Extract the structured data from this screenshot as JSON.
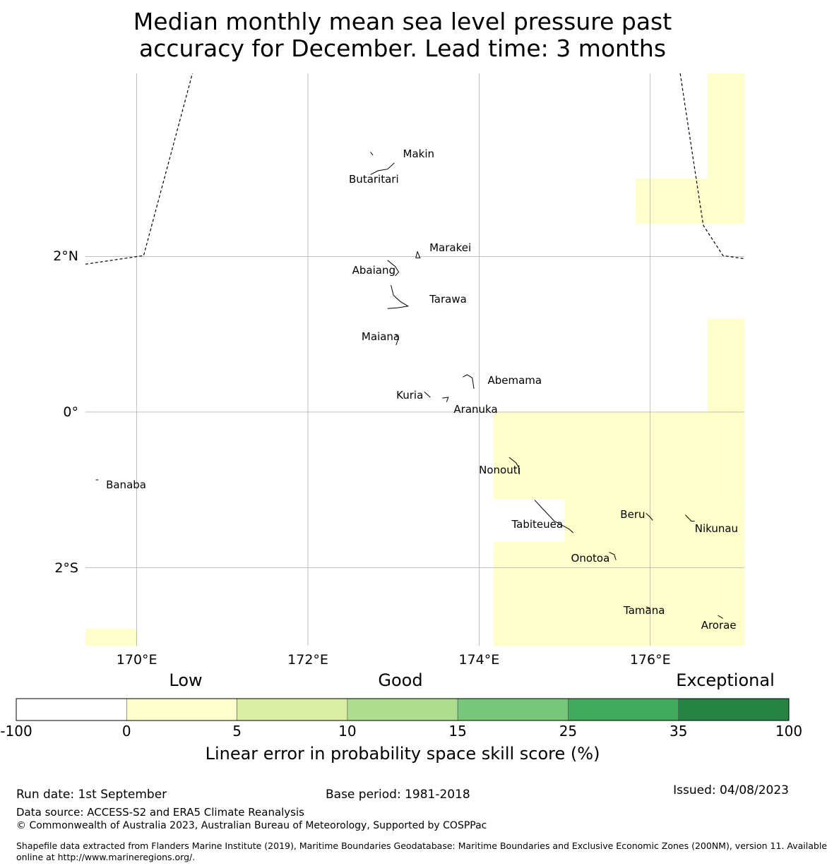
{
  "title_lines": [
    "Median monthly mean sea level pressure past",
    "accuracy for December. Lead time: 3 months"
  ],
  "map": {
    "lon_range": [
      169.4,
      177.1
    ],
    "lat_range": [
      -3.0,
      4.35
    ],
    "lon_ticks": [
      {
        "lon": 170,
        "label": "170°E"
      },
      {
        "lon": 172,
        "label": "172°E"
      },
      {
        "lon": 174,
        "label": "174°E"
      },
      {
        "lon": 176,
        "label": "176°E"
      }
    ],
    "lat_ticks": [
      {
        "lat": 2,
        "label": "2°N"
      },
      {
        "lat": 0,
        "label": "0°"
      },
      {
        "lat": -2,
        "label": "2°S"
      }
    ],
    "skill_cells": [
      {
        "lon": [
          176.67,
          177.1
        ],
        "lat": [
          2.42,
          4.35
        ],
        "category": "0-5"
      },
      {
        "lon": [
          175.83,
          176.67
        ],
        "lat": [
          2.42,
          3.0
        ],
        "category": "0-5"
      },
      {
        "lon": [
          176.67,
          177.1
        ],
        "lat": [
          0.0,
          1.2
        ],
        "category": "0-5"
      },
      {
        "lon": [
          174.17,
          177.1
        ],
        "lat": [
          -1.12,
          0.0
        ],
        "category": "0-5"
      },
      {
        "lon": [
          175.0,
          177.1
        ],
        "lat": [
          -1.67,
          -1.12
        ],
        "category": "0-5"
      },
      {
        "lon": [
          174.17,
          177.1
        ],
        "lat": [
          -3.0,
          -1.67
        ],
        "category": "0-5"
      },
      {
        "lon": [
          169.4,
          170.0
        ],
        "lat": [
          -3.0,
          -2.78
        ],
        "category": "0-5"
      }
    ],
    "boundary_lines": [
      [
        [
          169.4,
          1.9
        ],
        [
          170.08,
          2.01
        ],
        [
          170.65,
          4.35
        ]
      ],
      [
        [
          176.35,
          4.35
        ],
        [
          176.62,
          2.4
        ],
        [
          176.85,
          2.01
        ],
        [
          177.1,
          1.97
        ]
      ]
    ],
    "islands": [
      {
        "name": "Makin",
        "label": "Makin",
        "lon": 172.99,
        "lat": 3.37,
        "label_lon": 173.11,
        "label_lat": 3.32,
        "anchor": "left",
        "shape": [
          [
            172.73,
            3.34
          ],
          [
            172.76,
            3.3
          ]
        ]
      },
      {
        "name": "Butaritari",
        "label": "Butaritari",
        "lon": 172.85,
        "lat": 3.1,
        "label_lon": 172.77,
        "label_lat": 2.99,
        "anchor": "center",
        "shape": [
          [
            173.01,
            3.2
          ],
          [
            172.93,
            3.12
          ],
          [
            172.82,
            3.1
          ],
          [
            172.73,
            3.05
          ]
        ]
      },
      {
        "name": "Marakei",
        "label": "Marakei",
        "lon": 173.28,
        "lat": 2.02,
        "label_lon": 173.42,
        "label_lat": 2.11,
        "anchor": "left",
        "shape": [
          [
            173.26,
            1.98
          ],
          [
            173.28,
            2.06
          ],
          [
            173.31,
            1.98
          ],
          [
            173.26,
            1.98
          ]
        ]
      },
      {
        "name": "Abaiang",
        "label": "Abaiang",
        "lon": 172.98,
        "lat": 1.85,
        "label_lon": 172.77,
        "label_lat": 1.82,
        "anchor": "center",
        "shape": [
          [
            172.93,
            1.95
          ],
          [
            173.02,
            1.87
          ],
          [
            173.06,
            1.8
          ],
          [
            173.02,
            1.75
          ]
        ]
      },
      {
        "name": "Tarawa",
        "label": "Tarawa",
        "lon": 173.0,
        "lat": 1.45,
        "label_lon": 173.42,
        "label_lat": 1.45,
        "anchor": "left",
        "shape": [
          [
            172.97,
            1.63
          ],
          [
            173.0,
            1.5
          ],
          [
            173.08,
            1.42
          ],
          [
            173.17,
            1.36
          ],
          [
            173.05,
            1.34
          ],
          [
            172.93,
            1.33
          ]
        ]
      },
      {
        "name": "Maiana",
        "label": "Maiana",
        "lon": 173.05,
        "lat": 0.95,
        "label_lon": 172.85,
        "label_lat": 0.97,
        "anchor": "center",
        "shape": [
          [
            173.02,
            1.0
          ],
          [
            173.06,
            0.96
          ],
          [
            173.03,
            0.86
          ]
        ]
      },
      {
        "name": "Abemama",
        "label": "Abemama",
        "lon": 173.88,
        "lat": 0.4,
        "label_lon": 174.1,
        "label_lat": 0.41,
        "anchor": "left",
        "shape": [
          [
            173.81,
            0.45
          ],
          [
            173.86,
            0.48
          ],
          [
            173.92,
            0.44
          ],
          [
            173.94,
            0.3
          ]
        ]
      },
      {
        "name": "Kuria",
        "label": "Kuria",
        "lon": 173.4,
        "lat": 0.23,
        "label_lon": 173.19,
        "label_lat": 0.22,
        "anchor": "center",
        "shape": [
          [
            173.36,
            0.26
          ],
          [
            173.43,
            0.19
          ]
        ]
      },
      {
        "name": "Aranuka",
        "label": "Aranuka",
        "lon": 173.62,
        "lat": 0.18,
        "label_lon": 173.96,
        "label_lat": 0.04,
        "anchor": "center",
        "shape": [
          [
            173.57,
            0.18
          ],
          [
            173.64,
            0.19
          ],
          [
            173.62,
            0.13
          ]
        ]
      },
      {
        "name": "Banaba",
        "label": "Banaba",
        "lon": 169.53,
        "lat": -0.87,
        "label_lon": 169.64,
        "label_lat": -0.93,
        "anchor": "left",
        "shape": [
          [
            169.52,
            -0.87
          ],
          [
            169.55,
            -0.87
          ]
        ]
      },
      {
        "name": "Nonouti",
        "label": "Nonouti",
        "lon": 174.4,
        "lat": -0.65,
        "label_lon": 174.24,
        "label_lat": -0.74,
        "anchor": "center",
        "shape": [
          [
            174.35,
            -0.58
          ],
          [
            174.43,
            -0.65
          ],
          [
            174.47,
            -0.72
          ],
          [
            174.47,
            -0.8
          ]
        ]
      },
      {
        "name": "Tabiteuea",
        "label": "Tabiteuea",
        "lon": 174.8,
        "lat": -1.3,
        "label_lon": 174.68,
        "label_lat": -1.44,
        "anchor": "center",
        "shape": [
          [
            174.65,
            -1.13
          ],
          [
            174.75,
            -1.25
          ],
          [
            174.88,
            -1.4
          ],
          [
            175.05,
            -1.5
          ],
          [
            175.1,
            -1.55
          ]
        ]
      },
      {
        "name": "Beru",
        "label": "Beru",
        "lon": 175.98,
        "lat": -1.34,
        "label_lon": 175.65,
        "label_lat": -1.31,
        "anchor": "left",
        "shape": [
          [
            175.95,
            -1.3
          ],
          [
            176.0,
            -1.35
          ],
          [
            176.03,
            -1.39
          ]
        ]
      },
      {
        "name": "Nikunau",
        "label": "Nikunau",
        "lon": 176.45,
        "lat": -1.37,
        "label_lon": 176.52,
        "label_lat": -1.5,
        "anchor": "left",
        "shape": [
          [
            176.41,
            -1.32
          ],
          [
            176.48,
            -1.4
          ],
          [
            176.52,
            -1.4
          ]
        ]
      },
      {
        "name": "Onotoa",
        "label": "Onotoa",
        "lon": 175.57,
        "lat": -1.85,
        "label_lon": 175.3,
        "label_lat": -1.88,
        "anchor": "center",
        "shape": [
          [
            175.52,
            -1.8
          ],
          [
            175.58,
            -1.83
          ],
          [
            175.6,
            -1.9
          ]
        ]
      },
      {
        "name": "Tamana",
        "label": "Tamana",
        "lon": 175.97,
        "lat": -2.5,
        "label_lon": 175.93,
        "label_lat": -2.55,
        "anchor": "center",
        "shape": [
          [
            175.95,
            -2.5
          ],
          [
            176.0,
            -2.52
          ]
        ]
      },
      {
        "name": "Arorae",
        "label": "Arorae",
        "lon": 176.82,
        "lat": -2.63,
        "label_lon": 176.8,
        "label_lat": -2.74,
        "anchor": "center",
        "shape": [
          [
            176.79,
            -2.61
          ],
          [
            176.85,
            -2.65
          ]
        ]
      }
    ]
  },
  "legend": {
    "category_labels": [
      "Low",
      "Good",
      "Exceptional"
    ],
    "bins": [
      {
        "from": "-100",
        "to": "0",
        "color": "#ffffff"
      },
      {
        "from": "0",
        "to": "5",
        "color": "#ffffcc"
      },
      {
        "from": "5",
        "to": "10",
        "color": "#d9f0a3"
      },
      {
        "from": "10",
        "to": "15",
        "color": "#addd8e"
      },
      {
        "from": "15",
        "to": "25",
        "color": "#78c679"
      },
      {
        "from": "25",
        "to": "35",
        "color": "#41ab5d"
      },
      {
        "from": "35",
        "to": "100",
        "color": "#238443"
      }
    ],
    "tick_labels": [
      "-100",
      "0",
      "5",
      "10",
      "15",
      "25",
      "35",
      "100"
    ],
    "axis_label": "Linear error in probability space skill score (%)"
  },
  "footer": {
    "run_date": "Run date: 1st September",
    "base_period": "Base period: 1981-2018",
    "issued": "Issued: 04/08/2023",
    "data_source": "Data source: ACCESS-S2 and ERA5 Climate Reanalysis",
    "copyright": "© Commonwealth of Australia 2023, Australian Bureau of Meteorology, Supported by COSPPac",
    "shapefile_line1": "Shapefile data extracted from Flanders Marine Institute (2019), Maritime Boundaries Geodatabase: Maritime Boundaries and Exclusive Economic Zones (200NM), version 11. Available",
    "shapefile_line2": "online at http://www.marineregions.org/."
  }
}
